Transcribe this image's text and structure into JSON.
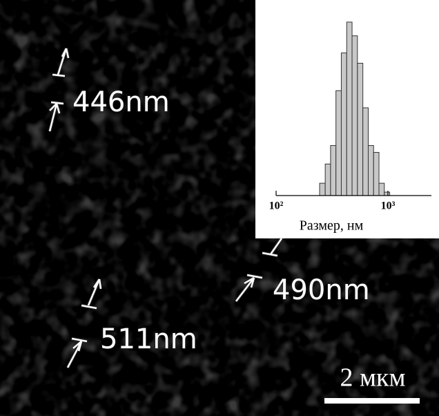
{
  "annotations": [
    "446nm",
    "490nm",
    "511nm"
  ],
  "scale_bar": "2 мкм",
  "chart_data": {
    "type": "histogram",
    "xlabel": "Размер, нм",
    "log_x": true,
    "color": "#c8c8c8",
    "bins": [
      245,
      275,
      307,
      343,
      383,
      428,
      478,
      534,
      597,
      667,
      745,
      832,
      929,
      1038
    ],
    "values": [
      18,
      46,
      73,
      153,
      208,
      253,
      233,
      193,
      128,
      73,
      63,
      18,
      5
    ],
    "xlim": [
      100,
      2450
    ],
    "ylim": [
      0,
      260
    ],
    "xticks": [
      {
        "value": 100,
        "label": "10²"
      },
      {
        "value": 1000,
        "label": "10³"
      }
    ]
  }
}
